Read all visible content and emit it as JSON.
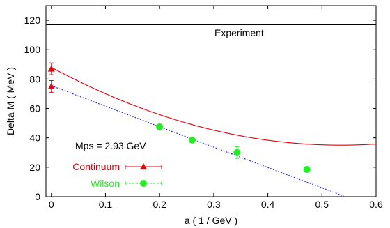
{
  "chart_data": {
    "type": "scatter",
    "title": "",
    "xlabel": "a ( 1 / GeV )",
    "ylabel": "Delta M ( MeV )",
    "xlim": [
      -0.01,
      0.6
    ],
    "ylim": [
      0,
      130
    ],
    "xticks": [
      0,
      0.1,
      0.2,
      0.3,
      0.4,
      0.5,
      0.6
    ],
    "xtick_labels": [
      "0",
      "0.1",
      "0.2",
      "0.3",
      "0.4",
      "0.5",
      "0.6"
    ],
    "yticks": [
      0,
      20,
      40,
      60,
      80,
      100,
      120
    ],
    "ytick_labels": [
      "0",
      "20",
      "40",
      "60",
      "80",
      "100",
      "120"
    ],
    "grid": false,
    "legend_position": "bottom-left",
    "experiment": {
      "value": 117,
      "label": "Experiment"
    },
    "annotation": "Mps = 2.93 GeV",
    "series": [
      {
        "name": "Continuum",
        "marker": "triangle",
        "color": "#e8000b",
        "x": [
          0,
          0
        ],
        "y": [
          87,
          75
        ],
        "yerr": [
          4,
          4
        ],
        "fit": {
          "style": "solid",
          "a": 88,
          "b": -198,
          "c": 185
        }
      },
      {
        "name": "Wilson",
        "marker": "circle",
        "color": "#22ee22",
        "x": [
          0.2,
          0.26,
          0.343,
          0.472
        ],
        "y": [
          47.5,
          38.5,
          30,
          18.5
        ],
        "yerr": [
          1.2,
          1.2,
          4,
          1.2
        ],
        "fit": {
          "style": "dotted",
          "color": "#1a1aff",
          "a": 75.5,
          "b": -140,
          "c": 2
        }
      }
    ]
  }
}
